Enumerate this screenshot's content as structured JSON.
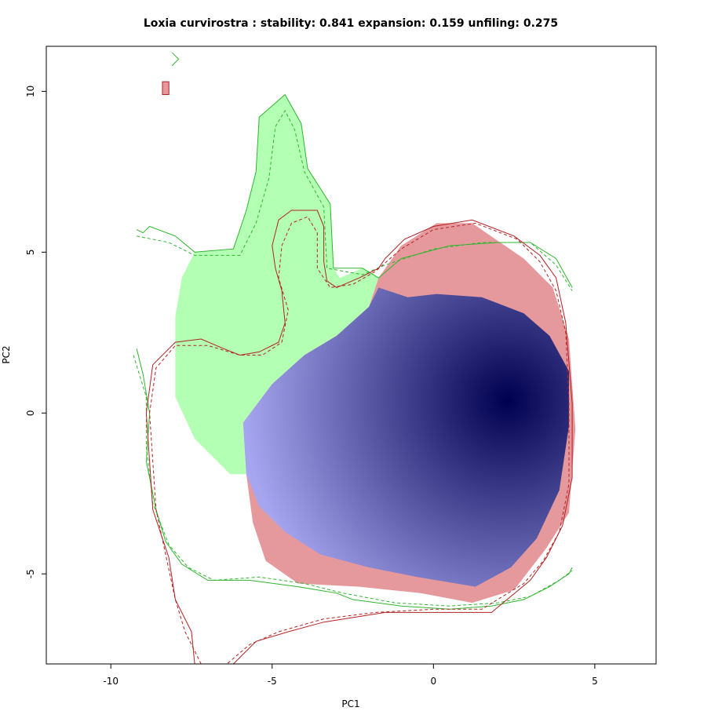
{
  "chart_data": {
    "type": "area",
    "title": "Loxia curvirostra : stability: 0.841 expansion: 0.159 unfiling: 0.275",
    "xlabel": "PC1",
    "ylabel": "PC2",
    "xlim": [
      -12.0,
      6.9
    ],
    "ylim": [
      -7.8,
      11.4
    ],
    "xticks": [
      -10,
      -5,
      0,
      5
    ],
    "yticks": [
      -5,
      0,
      5,
      10
    ],
    "xtick_labels": [
      "-10",
      "-5",
      "0",
      "5"
    ],
    "ytick_labels": [
      "-5",
      "0",
      "5",
      "10"
    ],
    "grid": false,
    "legend": "none",
    "colors": {
      "expansion": "#b3ffb3",
      "unfilling": "#e6999c",
      "stability_light": "#a6a6f0",
      "stability_dark": "#000050",
      "native_contour": "#2fb52f",
      "invaded_contour": "#b22222"
    },
    "density_peak": [
      2.3,
      0.4
    ],
    "regions": {
      "expansion": [
        [
          -8.0,
          0.5
        ],
        [
          -7.4,
          -0.8
        ],
        [
          -6.3,
          -1.9
        ],
        [
          -5.8,
          -1.9
        ],
        [
          -5.9,
          -0.3
        ],
        [
          -5.0,
          0.9
        ],
        [
          -4.0,
          1.8
        ],
        [
          -3.0,
          2.4
        ],
        [
          -2.0,
          3.3
        ],
        [
          -1.7,
          4.2
        ],
        [
          -2.2,
          4.5
        ],
        [
          -2.9,
          4.2
        ],
        [
          -3.1,
          4.5
        ],
        [
          -3.2,
          6.5
        ],
        [
          -3.9,
          7.6
        ],
        [
          -4.1,
          9.0
        ],
        [
          -4.6,
          9.9
        ],
        [
          -5.4,
          9.2
        ],
        [
          -5.5,
          7.5
        ],
        [
          -5.8,
          6.3
        ],
        [
          -6.2,
          5.1
        ],
        [
          -7.4,
          5.0
        ],
        [
          -7.8,
          4.2
        ],
        [
          -8.0,
          3.0
        ]
      ],
      "unfilling": [
        [
          -5.8,
          -1.9
        ],
        [
          -5.6,
          -3.4
        ],
        [
          -5.2,
          -4.6
        ],
        [
          -4.2,
          -5.3
        ],
        [
          -2.3,
          -5.4
        ],
        [
          -0.4,
          -5.6
        ],
        [
          1.2,
          -5.9
        ],
        [
          2.5,
          -5.5
        ],
        [
          3.5,
          -4.2
        ],
        [
          4.2,
          -3.1
        ],
        [
          4.4,
          -0.5
        ],
        [
          4.2,
          2.3
        ],
        [
          3.7,
          3.9
        ],
        [
          2.8,
          4.8
        ],
        [
          1.2,
          5.9
        ],
        [
          0.1,
          5.9
        ],
        [
          -1.0,
          5.2
        ],
        [
          -1.7,
          4.2
        ],
        [
          -2.0,
          3.3
        ],
        [
          -3.0,
          2.4
        ],
        [
          -4.0,
          1.8
        ],
        [
          -5.0,
          0.9
        ],
        [
          -5.9,
          -0.3
        ]
      ],
      "stability": [
        [
          -5.9,
          -0.3
        ],
        [
          -5.8,
          -1.9
        ],
        [
          -5.4,
          -2.9
        ],
        [
          -4.6,
          -3.7
        ],
        [
          -3.5,
          -4.4
        ],
        [
          -2.0,
          -4.8
        ],
        [
          -0.5,
          -5.1
        ],
        [
          1.3,
          -5.4
        ],
        [
          2.4,
          -4.8
        ],
        [
          3.2,
          -3.9
        ],
        [
          3.9,
          -2.4
        ],
        [
          4.2,
          -0.4
        ],
        [
          4.2,
          1.3
        ],
        [
          3.6,
          2.4
        ],
        [
          2.8,
          3.1
        ],
        [
          1.5,
          3.6
        ],
        [
          0.1,
          3.7
        ],
        [
          -0.8,
          3.6
        ],
        [
          -1.7,
          3.9
        ],
        [
          -2.0,
          3.3
        ],
        [
          -3.0,
          2.4
        ],
        [
          -4.0,
          1.8
        ],
        [
          -5.0,
          0.9
        ]
      ]
    },
    "small_patches": {
      "unfilling": [
        [
          -8.4,
          9.9
        ],
        [
          -8.4,
          10.3
        ],
        [
          -8.2,
          10.3
        ],
        [
          -8.2,
          9.9
        ]
      ]
    },
    "contours": {
      "native_solid": [
        [
          [
            -9.2,
            5.7
          ],
          [
            -9.0,
            5.6
          ],
          [
            -8.8,
            5.8
          ],
          [
            -8.0,
            5.5
          ],
          [
            -7.4,
            5.0
          ],
          [
            -6.2,
            5.1
          ],
          [
            -5.8,
            6.3
          ],
          [
            -5.5,
            7.5
          ],
          [
            -5.4,
            9.2
          ],
          [
            -4.6,
            9.9
          ],
          [
            -4.1,
            9.0
          ],
          [
            -3.9,
            7.6
          ],
          [
            -3.2,
            6.5
          ],
          [
            -3.1,
            4.5
          ],
          [
            -2.2,
            4.5
          ],
          [
            -1.7,
            4.2
          ],
          [
            -1.0,
            4.8
          ],
          [
            0.5,
            5.2
          ],
          [
            2.0,
            5.3
          ],
          [
            3.0,
            5.3
          ],
          [
            3.8,
            4.8
          ],
          [
            4.3,
            3.9
          ]
        ],
        [
          [
            -9.2,
            2.0
          ],
          [
            -9.0,
            1.2
          ],
          [
            -8.8,
            0.0
          ],
          [
            -8.9,
            -1.5
          ],
          [
            -8.6,
            -3.0
          ],
          [
            -8.3,
            -4.0
          ],
          [
            -7.8,
            -4.7
          ],
          [
            -7.0,
            -5.2
          ],
          [
            -5.7,
            -5.2
          ],
          [
            -4.2,
            -5.4
          ],
          [
            -3.0,
            -5.6
          ],
          [
            -2.5,
            -5.8
          ],
          [
            -1.0,
            -6.0
          ],
          [
            0.5,
            -6.1
          ],
          [
            1.8,
            -6.0
          ],
          [
            2.8,
            -5.8
          ],
          [
            3.6,
            -5.4
          ],
          [
            4.2,
            -5.0
          ],
          [
            4.3,
            -4.8
          ]
        ],
        [
          [
            -8.1,
            11.2
          ],
          [
            -7.9,
            11.0
          ],
          [
            -8.1,
            10.8
          ]
        ]
      ],
      "native_dashed": [
        [
          [
            -9.2,
            5.5
          ],
          [
            -8.2,
            5.3
          ],
          [
            -7.4,
            4.9
          ],
          [
            -6.0,
            4.9
          ],
          [
            -5.5,
            5.9
          ],
          [
            -5.1,
            7.3
          ],
          [
            -4.9,
            8.9
          ],
          [
            -4.6,
            9.4
          ],
          [
            -4.3,
            8.8
          ],
          [
            -4.0,
            7.5
          ],
          [
            -3.4,
            6.4
          ],
          [
            -3.3,
            4.5
          ],
          [
            -2.2,
            4.3
          ],
          [
            -1.5,
            4.6
          ],
          [
            0.0,
            5.1
          ],
          [
            1.5,
            5.3
          ],
          [
            3.0,
            5.3
          ],
          [
            3.8,
            4.6
          ],
          [
            4.3,
            3.8
          ]
        ],
        [
          [
            -9.3,
            1.8
          ],
          [
            -8.9,
            0.5
          ],
          [
            -8.9,
            -1.0
          ],
          [
            -8.7,
            -2.8
          ],
          [
            -8.2,
            -4.1
          ],
          [
            -7.6,
            -4.8
          ],
          [
            -6.8,
            -5.2
          ],
          [
            -5.4,
            -5.1
          ],
          [
            -4.0,
            -5.3
          ],
          [
            -2.8,
            -5.6
          ],
          [
            -1.2,
            -5.9
          ],
          [
            0.5,
            -6.0
          ],
          [
            2.0,
            -5.9
          ],
          [
            3.0,
            -5.7
          ],
          [
            3.9,
            -5.2
          ],
          [
            4.3,
            -4.9
          ]
        ]
      ],
      "invaded_solid": [
        [
          [
            -7.4,
            -7.8
          ],
          [
            -7.5,
            -6.8
          ],
          [
            -8.0,
            -5.8
          ],
          [
            -8.2,
            -4.5
          ],
          [
            -8.7,
            -3.0
          ],
          [
            -8.8,
            -1.5
          ],
          [
            -8.9,
            0.0
          ],
          [
            -8.7,
            1.5
          ],
          [
            -8.0,
            2.2
          ],
          [
            -7.2,
            2.3
          ],
          [
            -6.5,
            2.0
          ],
          [
            -6.0,
            1.8
          ],
          [
            -5.4,
            1.9
          ],
          [
            -4.8,
            2.2
          ],
          [
            -4.6,
            2.8
          ],
          [
            -4.7,
            3.8
          ],
          [
            -4.9,
            4.5
          ],
          [
            -5.0,
            5.2
          ],
          [
            -4.8,
            6.0
          ],
          [
            -4.4,
            6.3
          ],
          [
            -3.6,
            6.3
          ],
          [
            -3.4,
            5.8
          ],
          [
            -3.4,
            4.7
          ],
          [
            -3.3,
            4.1
          ],
          [
            -3.0,
            3.9
          ],
          [
            -2.3,
            4.2
          ],
          [
            -1.7,
            4.5
          ],
          [
            -1.5,
            4.8
          ],
          [
            -0.9,
            5.4
          ],
          [
            0.0,
            5.8
          ],
          [
            1.2,
            6.0
          ],
          [
            2.5,
            5.5
          ],
          [
            3.3,
            4.9
          ],
          [
            3.8,
            4.2
          ],
          [
            4.1,
            2.8
          ],
          [
            4.3,
            0.3
          ],
          [
            4.3,
            -2.0
          ],
          [
            4.0,
            -3.5
          ],
          [
            3.5,
            -4.5
          ],
          [
            3.0,
            -5.2
          ],
          [
            1.8,
            -6.2
          ],
          [
            0.0,
            -6.2
          ],
          [
            -1.5,
            -6.2
          ],
          [
            -3.4,
            -6.5
          ],
          [
            -4.5,
            -6.8
          ],
          [
            -5.5,
            -7.1
          ],
          [
            -6.2,
            -7.8
          ]
        ]
      ],
      "invaded_dashed": [
        [
          [
            -7.2,
            -7.8
          ],
          [
            -7.7,
            -6.8
          ],
          [
            -8.0,
            -5.8
          ],
          [
            -8.3,
            -4.4
          ],
          [
            -8.6,
            -3.0
          ],
          [
            -8.7,
            -1.5
          ],
          [
            -8.8,
            0.0
          ],
          [
            -8.6,
            1.4
          ],
          [
            -8.0,
            2.1
          ],
          [
            -7.0,
            2.1
          ],
          [
            -6.0,
            1.8
          ],
          [
            -5.3,
            1.8
          ],
          [
            -4.7,
            2.2
          ],
          [
            -4.5,
            3.2
          ],
          [
            -4.8,
            4.2
          ],
          [
            -4.7,
            5.2
          ],
          [
            -4.4,
            5.9
          ],
          [
            -3.9,
            6.1
          ],
          [
            -3.6,
            5.6
          ],
          [
            -3.6,
            4.5
          ],
          [
            -3.2,
            3.9
          ],
          [
            -2.5,
            4.0
          ],
          [
            -1.8,
            4.4
          ],
          [
            -1.0,
            5.1
          ],
          [
            0.0,
            5.7
          ],
          [
            1.3,
            5.9
          ],
          [
            2.6,
            5.4
          ],
          [
            3.3,
            4.7
          ],
          [
            3.8,
            3.8
          ],
          [
            4.1,
            2.5
          ],
          [
            4.2,
            0.3
          ],
          [
            4.2,
            -2.2
          ],
          [
            3.9,
            -3.7
          ],
          [
            3.4,
            -4.6
          ],
          [
            2.8,
            -5.3
          ],
          [
            1.5,
            -6.1
          ],
          [
            0.0,
            -6.1
          ],
          [
            -1.8,
            -6.2
          ],
          [
            -3.4,
            -6.4
          ],
          [
            -4.8,
            -6.8
          ],
          [
            -5.7,
            -7.2
          ],
          [
            -6.4,
            -7.8
          ]
        ]
      ]
    }
  }
}
